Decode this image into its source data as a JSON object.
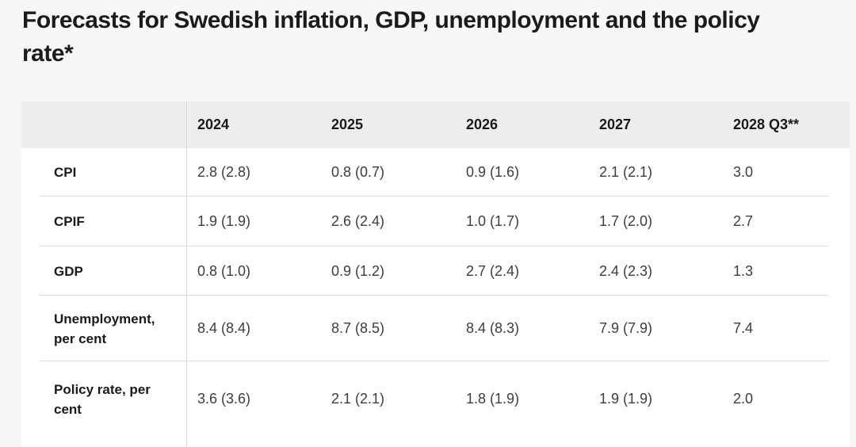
{
  "chart_data": {
    "type": "table",
    "title": "Forecasts for Swedish inflation, GDP, unemployment and the policy rate*",
    "columns": [
      "",
      "2024",
      "2025",
      "2026",
      "2027",
      "2028 Q3**"
    ],
    "rows": [
      {
        "label": "CPI",
        "values": [
          "2.8 (2.8)",
          "0.8 (0.7)",
          "0.9 (1.6)",
          "2.1 (2.1)",
          "3.0"
        ]
      },
      {
        "label": "CPIF",
        "values": [
          "1.9 (1.9)",
          "2.6 (2.4)",
          "1.0 (1.7)",
          "1.7 (2.0)",
          "2.7"
        ]
      },
      {
        "label": "GDP",
        "values": [
          "0.8 (1.0)",
          "0.9 (1.2)",
          "2.7 (2.4)",
          "2.4 (2.3)",
          "1.3"
        ]
      },
      {
        "label": "Unemployment, per cent",
        "values": [
          "8.4 (8.4)",
          "8.7 (8.5)",
          "8.4 (8.3)",
          "7.9 (7.9)",
          "7.4"
        ]
      },
      {
        "label": "Policy rate, per cent",
        "values": [
          "3.6 (3.6)",
          "2.1 (2.1)",
          "1.8 (1.9)",
          "1.9 (1.9)",
          "2.0"
        ]
      }
    ],
    "layout": {
      "legend": "none",
      "grid": "horizontal-row-dividers"
    }
  },
  "colors": {
    "page_bg": "#f7f7f8",
    "table_bg": "#ffffff",
    "header_bg": "#ededed",
    "divider": "#dcdcdc",
    "column_divider": "#d6d6d6",
    "title_text": "#1b1b1b",
    "label_text": "#1a1a1a",
    "data_text": "#3d3d3d"
  }
}
